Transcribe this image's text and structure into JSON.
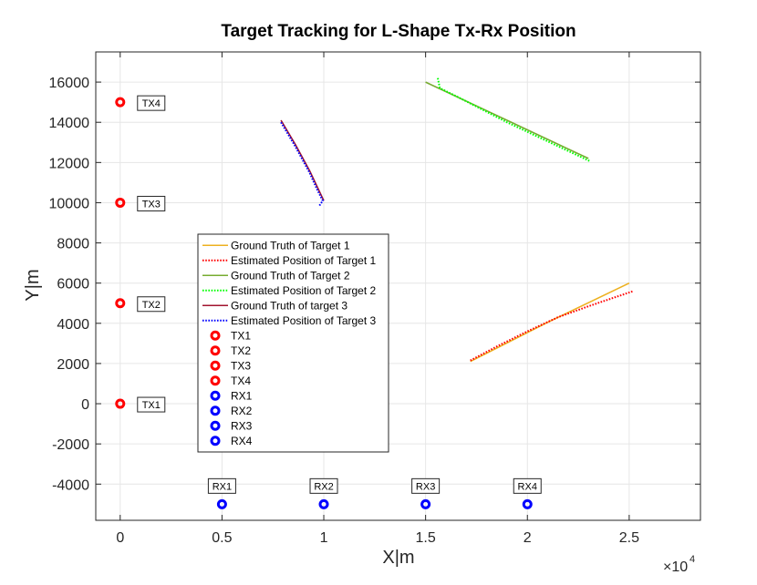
{
  "chart_data": {
    "type": "line",
    "title": "Target Tracking for L-Shape Tx-Rx Position",
    "xlabel": "X|m",
    "ylabel": "Y|m",
    "x_multiplier_label": "×10",
    "x_multiplier_exp": "4",
    "xlim": [
      -1200,
      28500
    ],
    "ylim": [
      -5800,
      17500
    ],
    "xticks": [
      0,
      5000,
      10000,
      15000,
      20000,
      25000
    ],
    "xtick_labels": [
      "0",
      "0.5",
      "1",
      "1.5",
      "2",
      "2.5"
    ],
    "yticks": [
      -4000,
      -2000,
      0,
      2000,
      4000,
      6000,
      8000,
      10000,
      12000,
      14000,
      16000
    ],
    "ytick_labels": [
      "-4000",
      "-2000",
      "0",
      "2000",
      "4000",
      "6000",
      "8000",
      "10000",
      "12000",
      "14000",
      "16000"
    ],
    "grid": true,
    "legend_position": "center-left",
    "series": [
      {
        "name": "Ground Truth of Target 1",
        "style": "solid",
        "color": "#EDB120",
        "x": [
          17200,
          21000,
          25000
        ],
        "y": [
          2100,
          4050,
          6000
        ]
      },
      {
        "name": "Estimated Position of Target 1",
        "style": "dotted",
        "color": "#FF0000",
        "x": [
          17200,
          18500,
          20000,
          21500,
          23000,
          25200
        ],
        "y": [
          2150,
          2850,
          3600,
          4300,
          4850,
          5600
        ]
      },
      {
        "name": "Ground Truth of Target 2",
        "style": "solid",
        "color": "#77AC30",
        "x": [
          15000,
          19000,
          23000
        ],
        "y": [
          16000,
          14100,
          12200
        ]
      },
      {
        "name": "Estimated Position of Target 2",
        "style": "dotted",
        "color": "#00FF00",
        "x": [
          15600,
          15700,
          16500,
          19000,
          23100
        ],
        "y": [
          16200,
          15700,
          15300,
          14000,
          12050
        ]
      },
      {
        "name": "Ground Truth of target 3",
        "style": "solid",
        "color": "#A2142F",
        "x": [
          7900,
          8600,
          9300,
          10000
        ],
        "y": [
          14100,
          12900,
          11600,
          10100
        ]
      },
      {
        "name": "Estimated Position  of Target 3",
        "style": "dotted",
        "color": "#0000FF",
        "x": [
          7900,
          8600,
          9300,
          9700,
          9950,
          9750
        ],
        "y": [
          14000,
          12800,
          11500,
          10600,
          10100,
          9800
        ]
      }
    ],
    "markers": [
      {
        "name": "TX1",
        "x": 0,
        "y": 0,
        "color": "#FF0000"
      },
      {
        "name": "TX2",
        "x": 0,
        "y": 5000,
        "color": "#FF0000"
      },
      {
        "name": "TX3",
        "x": 0,
        "y": 10000,
        "color": "#FF0000"
      },
      {
        "name": "TX4",
        "x": 0,
        "y": 15000,
        "color": "#FF0000"
      },
      {
        "name": "RX1",
        "x": 5000,
        "y": -5000,
        "color": "#0000FF"
      },
      {
        "name": "RX2",
        "x": 10000,
        "y": -5000,
        "color": "#0000FF"
      },
      {
        "name": "RX3",
        "x": 15000,
        "y": -5000,
        "color": "#0000FF"
      },
      {
        "name": "RX4",
        "x": 20000,
        "y": -5000,
        "color": "#0000FF"
      }
    ],
    "annotations": [
      {
        "text": "TX1",
        "anchor": "TX1",
        "side": "right"
      },
      {
        "text": "TX2",
        "anchor": "TX2",
        "side": "right"
      },
      {
        "text": "TX3",
        "anchor": "TX3",
        "side": "right"
      },
      {
        "text": "TX4",
        "anchor": "TX4",
        "side": "right"
      },
      {
        "text": "RX1",
        "anchor": "RX1",
        "side": "above"
      },
      {
        "text": "RX2",
        "anchor": "RX2",
        "side": "above"
      },
      {
        "text": "RX3",
        "anchor": "RX3",
        "side": "above"
      },
      {
        "text": "RX4",
        "anchor": "RX4",
        "side": "above"
      }
    ]
  }
}
